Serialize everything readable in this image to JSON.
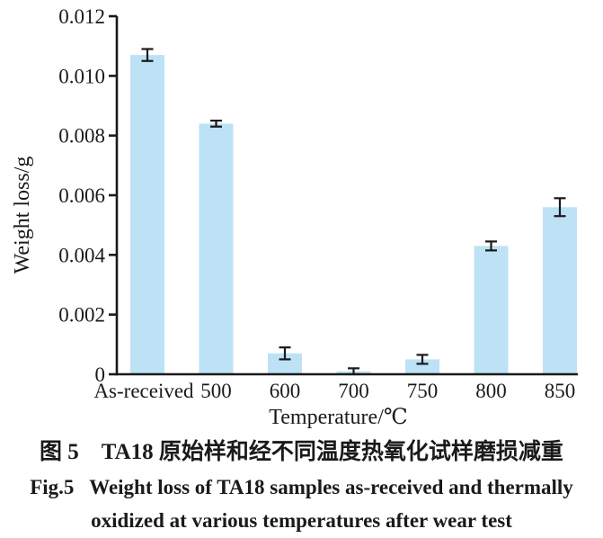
{
  "captions": {
    "zh": "图 5　TA18 原始样和经不同温度热氧化试样磨损减重",
    "en_line1": "Fig.5   Weight loss of TA18 samples as-received and thermally",
    "en_line2": "oxidized at various temperatures after wear test"
  },
  "chart_data": {
    "type": "bar",
    "title": "",
    "xlabel": "Temperature/℃",
    "ylabel": "Weight loss/g",
    "categories": [
      "As-received",
      "500",
      "600",
      "700",
      "750",
      "800",
      "850"
    ],
    "values": [
      0.0107,
      0.0084,
      0.0007,
      0.0001,
      0.0005,
      0.0043,
      0.0056
    ],
    "errors": [
      0.0002,
      0.0001,
      0.0002,
      0.0001,
      0.00015,
      0.00015,
      0.0003
    ],
    "ylim": [
      0,
      0.012
    ],
    "ytick_values": [
      0,
      0.002,
      0.004,
      0.006,
      0.008,
      0.01,
      0.012
    ],
    "ytick_labels": [
      "0",
      "0.002",
      "0.004",
      "0.006",
      "0.008",
      "0.010",
      "0.012"
    ],
    "grid": false,
    "legend": null,
    "bar_color": "#BDE2F5",
    "error_bar_color": "#1A1A1A",
    "axis_color": "#1A1A1A"
  }
}
